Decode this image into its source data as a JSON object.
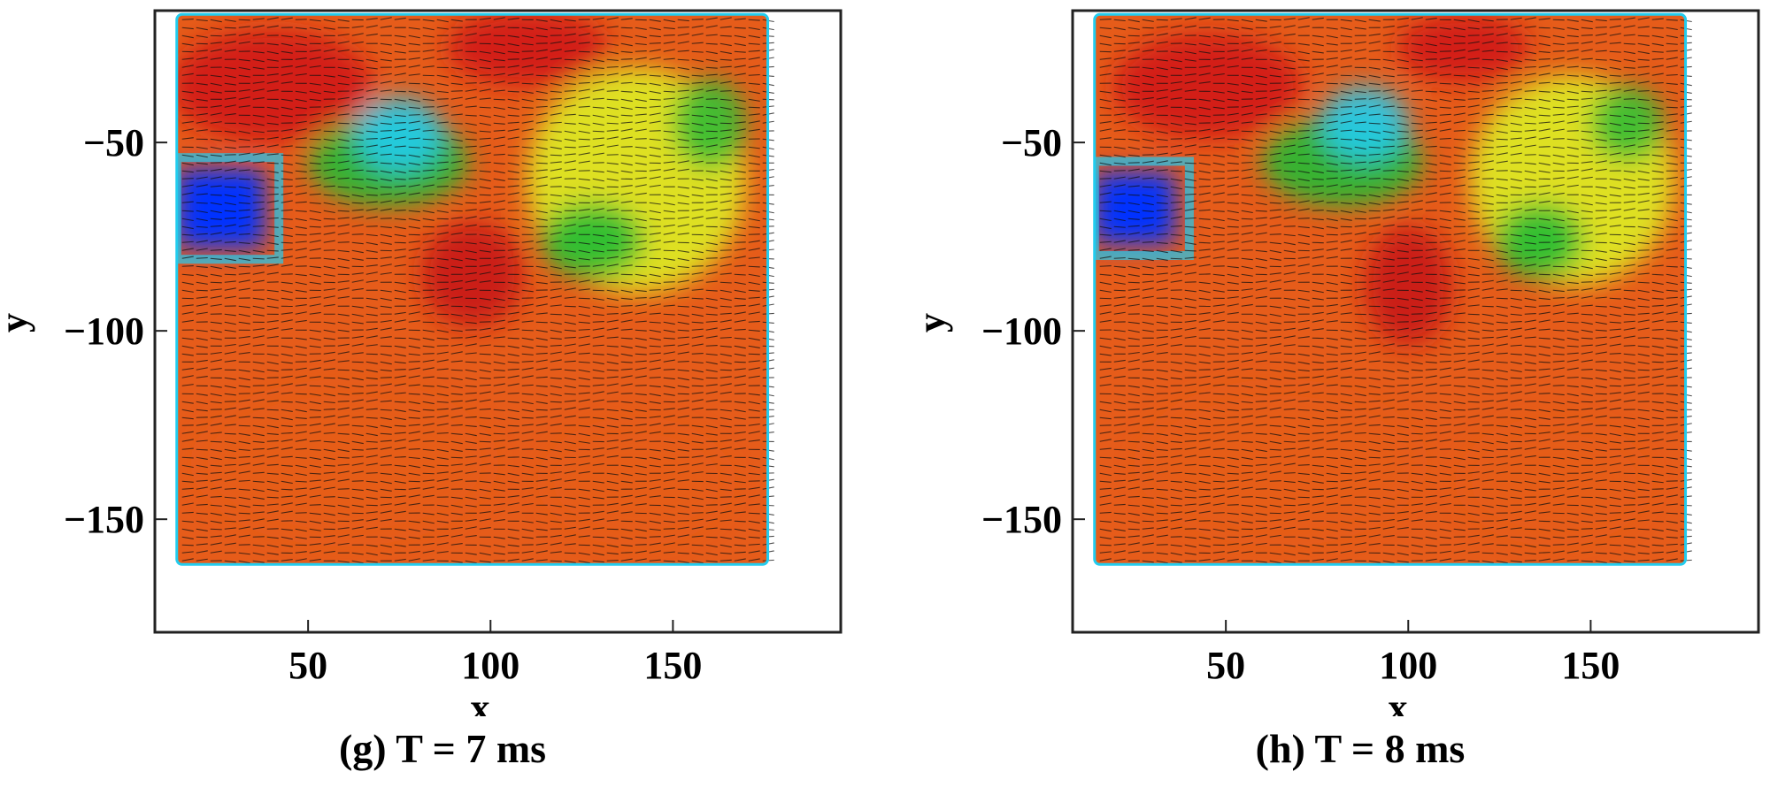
{
  "chart_data": [
    {
      "type": "heatmap",
      "panel_id": "g",
      "caption": "(g) T = 7 ms",
      "xlabel": "x",
      "ylabel": "y",
      "xlim": [
        8,
        196
      ],
      "ylim": [
        -180,
        -15
      ],
      "x_ticks": [
        50,
        100,
        150
      ],
      "y_ticks": [
        -50,
        -100,
        -150
      ],
      "x_tick_labels": [
        "50",
        "100",
        "150"
      ],
      "y_tick_labels": [
        "−50",
        "−100",
        "−150"
      ],
      "domain": {
        "x": [
          14,
          176
        ],
        "y": [
          -162,
          -16
        ]
      },
      "grid": false,
      "overlay": "velocity vector field (arrows pointing in +x direction)",
      "colormap": [
        "#0033ff",
        "#22ccee",
        "#22bb33",
        "#ddee22",
        "#f4a020",
        "#e65c1a",
        "#d01818"
      ],
      "regions": [
        {
          "shape": "ellipse",
          "cx": 40,
          "cy": -35,
          "rx": 28,
          "ry": 15,
          "level": "high",
          "color": "#d01818"
        },
        {
          "shape": "ellipse",
          "cx": 110,
          "cy": -25,
          "rx": 22,
          "ry": 10,
          "level": "high",
          "color": "#d01818"
        },
        {
          "shape": "ellipse",
          "cx": 95,
          "cy": -85,
          "rx": 14,
          "ry": 14,
          "level": "high",
          "color": "#c81616"
        },
        {
          "shape": "ellipse",
          "cx": 75,
          "cy": -48,
          "rx": 12,
          "ry": 10,
          "level": "low",
          "color": "#22ccee"
        },
        {
          "shape": "ellipse",
          "cx": 72,
          "cy": -55,
          "rx": 22,
          "ry": 12,
          "level": "mid",
          "color": "#22bb33"
        },
        {
          "shape": "ellipse",
          "cx": 128,
          "cy": -76,
          "rx": 14,
          "ry": 10,
          "level": "mid",
          "color": "#22bb33"
        },
        {
          "shape": "ellipse",
          "cx": 160,
          "cy": -45,
          "rx": 10,
          "ry": 12,
          "level": "mid",
          "color": "#33bb33"
        },
        {
          "shape": "rect",
          "x0": 14,
          "x1": 38,
          "y0": -78,
          "y1": -57,
          "level": "min",
          "color": "#0033ff"
        },
        {
          "shape": "ellipse",
          "cx": 140,
          "cy": -60,
          "rx": 30,
          "ry": 30,
          "level": "mid-high",
          "color": "#ddee22"
        },
        {
          "shape": "ellipse",
          "cx": 60,
          "cy": -135,
          "rx": 40,
          "ry": 20,
          "level": "high",
          "color": "#e65c1a"
        },
        {
          "shape": "ellipse",
          "cx": 140,
          "cy": -140,
          "rx": 25,
          "ry": 15,
          "level": "high",
          "color": "#e65c1a"
        }
      ]
    },
    {
      "type": "heatmap",
      "panel_id": "h",
      "caption": "(h) T = 8 ms",
      "xlabel": "x",
      "ylabel": "y",
      "xlim": [
        8,
        196
      ],
      "ylim": [
        -180,
        -15
      ],
      "x_ticks": [
        50,
        100,
        150
      ],
      "y_ticks": [
        -50,
        -100,
        -150
      ],
      "x_tick_labels": [
        "50",
        "100",
        "150"
      ],
      "y_tick_labels": [
        "−50",
        "−100",
        "−150"
      ],
      "domain": {
        "x": [
          14,
          176
        ],
        "y": [
          -162,
          -16
        ]
      },
      "grid": false,
      "overlay": "velocity vector field (arrows pointing in +x direction)",
      "colormap": [
        "#0033ff",
        "#22ccee",
        "#22bb33",
        "#ddee22",
        "#f4a020",
        "#e65c1a",
        "#d01818"
      ],
      "regions": [
        {
          "shape": "ellipse",
          "cx": 45,
          "cy": -35,
          "rx": 26,
          "ry": 14,
          "level": "high",
          "color": "#d01818"
        },
        {
          "shape": "ellipse",
          "cx": 115,
          "cy": -25,
          "rx": 18,
          "ry": 9,
          "level": "high",
          "color": "#d01818"
        },
        {
          "shape": "ellipse",
          "cx": 100,
          "cy": -88,
          "rx": 12,
          "ry": 16,
          "level": "high",
          "color": "#c81616"
        },
        {
          "shape": "ellipse",
          "cx": 88,
          "cy": -45,
          "rx": 12,
          "ry": 10,
          "level": "low",
          "color": "#22ccee"
        },
        {
          "shape": "ellipse",
          "cx": 82,
          "cy": -55,
          "rx": 22,
          "ry": 12,
          "level": "mid",
          "color": "#22bb33"
        },
        {
          "shape": "ellipse",
          "cx": 136,
          "cy": -76,
          "rx": 12,
          "ry": 10,
          "level": "mid",
          "color": "#22bb33"
        },
        {
          "shape": "ellipse",
          "cx": 160,
          "cy": -45,
          "rx": 10,
          "ry": 10,
          "level": "mid",
          "color": "#33bb33"
        },
        {
          "shape": "rect",
          "x0": 14,
          "x1": 36,
          "y0": -77,
          "y1": -58,
          "level": "min",
          "color": "#0033ff"
        },
        {
          "shape": "ellipse",
          "cx": 145,
          "cy": -60,
          "rx": 28,
          "ry": 28,
          "level": "mid-high",
          "color": "#ddee22"
        },
        {
          "shape": "ellipse",
          "cx": 65,
          "cy": -135,
          "rx": 38,
          "ry": 20,
          "level": "high",
          "color": "#e65c1a"
        },
        {
          "shape": "ellipse",
          "cx": 140,
          "cy": -140,
          "rx": 25,
          "ry": 15,
          "level": "high",
          "color": "#e65c1a"
        }
      ]
    }
  ]
}
